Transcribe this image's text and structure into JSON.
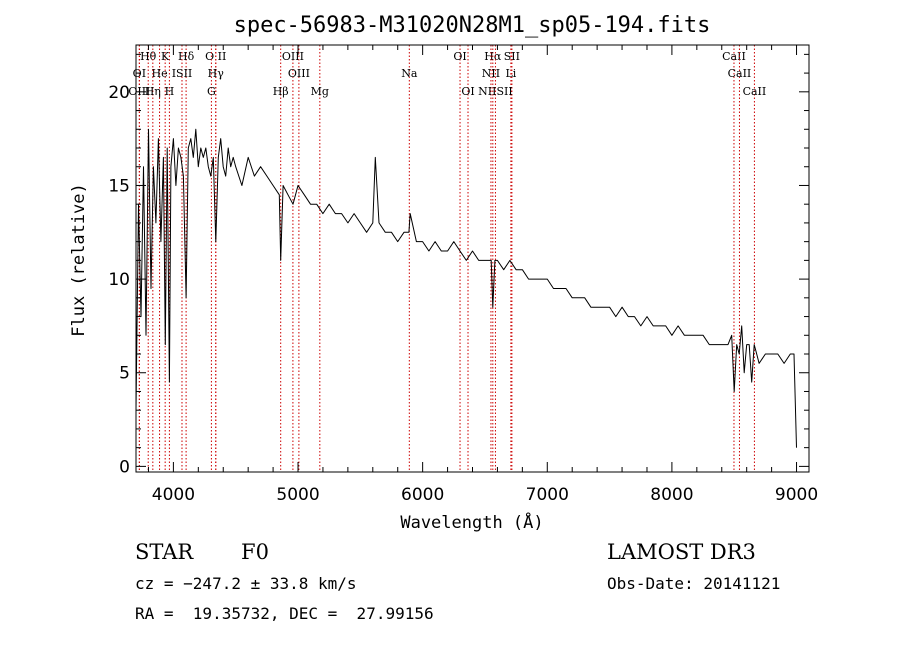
{
  "chart_data": {
    "type": "line",
    "title": "spec-56983-M31020N28M1_sp05-194.fits",
    "xlabel": "Wavelength (Å)",
    "ylabel": "Flux (relative)",
    "xlim": [
      3700,
      9100
    ],
    "ylim": [
      -0.3,
      22.5
    ],
    "xticks": [
      4000,
      5000,
      6000,
      7000,
      8000,
      9000
    ],
    "yticks": [
      0,
      5,
      10,
      15,
      20
    ],
    "series": [
      {
        "name": "spectrum",
        "x": [
          3700,
          3720,
          3740,
          3760,
          3780,
          3800,
          3820,
          3840,
          3860,
          3880,
          3900,
          3920,
          3935,
          3950,
          3968,
          3980,
          4000,
          4020,
          4040,
          4060,
          4080,
          4102,
          4120,
          4140,
          4160,
          4180,
          4200,
          4220,
          4240,
          4260,
          4280,
          4300,
          4320,
          4340,
          4360,
          4380,
          4400,
          4420,
          4440,
          4460,
          4480,
          4500,
          4550,
          4600,
          4650,
          4700,
          4750,
          4800,
          4850,
          4861,
          4880,
          4920,
          4960,
          5000,
          5050,
          5100,
          5150,
          5200,
          5250,
          5300,
          5350,
          5400,
          5450,
          5500,
          5550,
          5600,
          5620,
          5650,
          5700,
          5750,
          5800,
          5850,
          5890,
          5900,
          5950,
          6000,
          6050,
          6100,
          6150,
          6200,
          6250,
          6300,
          6350,
          6400,
          6450,
          6500,
          6550,
          6563,
          6580,
          6600,
          6650,
          6700,
          6750,
          6800,
          6850,
          6900,
          6950,
          7000,
          7050,
          7100,
          7150,
          7200,
          7250,
          7300,
          7350,
          7400,
          7450,
          7500,
          7550,
          7600,
          7650,
          7700,
          7750,
          7800,
          7850,
          7900,
          7950,
          8000,
          8050,
          8100,
          8150,
          8200,
          8250,
          8300,
          8350,
          8400,
          8450,
          8480,
          8500,
          8520,
          8540,
          8560,
          8580,
          8600,
          8620,
          8640,
          8660,
          8680,
          8700,
          8750,
          8800,
          8850,
          8900,
          8950,
          8980,
          9000
        ],
        "y": [
          3.0,
          14.0,
          8.0,
          16.0,
          7.0,
          18.0,
          9.5,
          16.0,
          13.0,
          17.5,
          12.0,
          16.5,
          6.5,
          17.0,
          4.5,
          16.0,
          17.5,
          15.0,
          17.0,
          16.5,
          15.5,
          9.0,
          17.0,
          17.5,
          16.5,
          18.0,
          16.0,
          17.0,
          16.5,
          17.0,
          16.0,
          15.5,
          16.5,
          12.0,
          16.5,
          17.5,
          16.0,
          15.5,
          17.0,
          16.0,
          16.5,
          16.0,
          15.0,
          16.5,
          15.5,
          16.0,
          15.5,
          15.0,
          14.5,
          11.0,
          15.0,
          14.5,
          14.0,
          15.0,
          14.5,
          14.0,
          14.0,
          13.5,
          14.0,
          13.5,
          13.5,
          13.0,
          13.5,
          13.0,
          12.5,
          13.0,
          16.5,
          13.0,
          12.5,
          12.5,
          12.0,
          12.5,
          12.5,
          13.5,
          12.0,
          12.0,
          11.5,
          12.0,
          11.5,
          11.5,
          12.0,
          11.5,
          11.0,
          11.5,
          11.0,
          11.0,
          11.0,
          8.5,
          11.0,
          11.0,
          10.5,
          11.0,
          10.5,
          10.5,
          10.0,
          10.0,
          10.0,
          10.0,
          9.5,
          9.5,
          9.5,
          9.0,
          9.0,
          9.0,
          8.5,
          8.5,
          8.5,
          8.5,
          8.0,
          8.5,
          8.0,
          8.0,
          7.5,
          8.0,
          7.5,
          7.5,
          7.5,
          7.0,
          7.5,
          7.0,
          7.0,
          7.0,
          7.0,
          6.5,
          6.5,
          6.5,
          6.5,
          7.0,
          4.0,
          6.5,
          6.0,
          7.5,
          5.0,
          6.5,
          6.5,
          4.5,
          6.5,
          6.0,
          5.5,
          6.0,
          6.0,
          6.0,
          5.5,
          6.0,
          6.0,
          1.0
        ]
      }
    ],
    "lines": [
      {
        "name": "Hθ",
        "wl": 3798,
        "row": 1
      },
      {
        "name": "K",
        "wl": 3934,
        "row": 1
      },
      {
        "name": "Hδ",
        "wl": 4102,
        "row": 1
      },
      {
        "name": "O II",
        "wl": 4340,
        "row": 1
      },
      {
        "name": "OIII",
        "wl": 4959,
        "row": 1
      },
      {
        "name": "OI",
        "wl": 6300,
        "row": 1
      },
      {
        "name": "Hα",
        "wl": 6563,
        "row": 1
      },
      {
        "name": "SII",
        "wl": 6716,
        "row": 1
      },
      {
        "name": "CaII",
        "wl": 8498,
        "row": 1
      },
      {
        "name": "OI",
        "wl": 3727,
        "row": 2
      },
      {
        "name": "He",
        "wl": 3889,
        "row": 2
      },
      {
        "name": "ISII",
        "wl": 4069,
        "row": 2
      },
      {
        "name": "Hγ",
        "wl": 4340,
        "row": 2
      },
      {
        "name": "OIII",
        "wl": 5007,
        "row": 2
      },
      {
        "name": "Na",
        "wl": 5893,
        "row": 2
      },
      {
        "name": "NII",
        "wl": 6548,
        "row": 2
      },
      {
        "name": "Li",
        "wl": 6708,
        "row": 2
      },
      {
        "name": "CaII",
        "wl": 8542,
        "row": 2
      },
      {
        "name": "OIII",
        "wl": 3727,
        "row": 3
      },
      {
        "name": "Hη",
        "wl": 3835,
        "row": 3
      },
      {
        "name": "H",
        "wl": 3968,
        "row": 3
      },
      {
        "name": "G",
        "wl": 4305,
        "row": 3
      },
      {
        "name": "Hβ",
        "wl": 4861,
        "row": 3
      },
      {
        "name": "Mg",
        "wl": 5175,
        "row": 3
      },
      {
        "name": "OI",
        "wl": 6364,
        "row": 3
      },
      {
        "name": "NIISII",
        "wl": 6584,
        "row": 3
      },
      {
        "name": "CaII",
        "wl": 8662,
        "row": 3
      }
    ],
    "line_marker_color": "#cc0000"
  },
  "info": {
    "class": "STAR",
    "subclass": "F0",
    "survey": "LAMOST DR3",
    "cz": "cz = −247.2 ± 33.8 km/s",
    "obs_date": "Obs-Date: 20141121",
    "coords": "RA =  19.35732, DEC =  27.99156"
  }
}
